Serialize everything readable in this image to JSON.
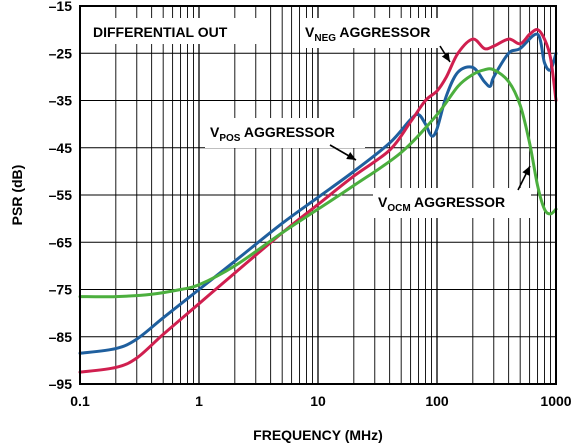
{
  "chart_data": {
    "type": "line",
    "xlabel": "FREQUENCY (MHz)",
    "ylabel": "PSR (dB)",
    "x_scale": "log",
    "xlim": [
      0.1,
      1000
    ],
    "ylim": [
      -95,
      -15
    ],
    "grid": true,
    "x_ticks": [
      {
        "value": 0.1,
        "label": "0.1"
      },
      {
        "value": 1,
        "label": "1"
      },
      {
        "value": 10,
        "label": "10"
      },
      {
        "value": 100,
        "label": "100"
      },
      {
        "value": 1000,
        "label": "1000"
      }
    ],
    "y_ticks": [
      {
        "value": -15,
        "label": "–15"
      },
      {
        "value": -25,
        "label": "–25"
      },
      {
        "value": -35,
        "label": "–35"
      },
      {
        "value": -45,
        "label": "–45"
      },
      {
        "value": -55,
        "label": "–55"
      },
      {
        "value": -65,
        "label": "–65"
      },
      {
        "value": -75,
        "label": "–75"
      },
      {
        "value": -85,
        "label": "–85"
      },
      {
        "value": -95,
        "label": "–95"
      }
    ],
    "annotations": {
      "differential_out": "DIFFERENTIAL OUT",
      "vneg": {
        "main": "V",
        "sub": "NEG",
        "rest": " AGGRESSOR"
      },
      "vpos": {
        "main": "V",
        "sub": "POS",
        "rest": " AGGRESSOR"
      },
      "vocm": {
        "main": "V",
        "sub": "OCM",
        "rest": " AGGRESSOR"
      }
    },
    "series": [
      {
        "color": "#1f5f9e",
        "points": [
          [
            0.1,
            -88.5
          ],
          [
            0.2,
            -87.5
          ],
          [
            0.3,
            -85.5
          ],
          [
            0.5,
            -81
          ],
          [
            1,
            -75
          ],
          [
            2,
            -69
          ],
          [
            5,
            -61
          ],
          [
            10,
            -55.5
          ],
          [
            20,
            -50
          ],
          [
            40,
            -44
          ],
          [
            60,
            -39
          ],
          [
            70,
            -38
          ],
          [
            80,
            -40
          ],
          [
            90,
            -42.5
          ],
          [
            100,
            -41
          ],
          [
            120,
            -34
          ],
          [
            150,
            -29
          ],
          [
            200,
            -28
          ],
          [
            250,
            -31
          ],
          [
            280,
            -32
          ],
          [
            300,
            -30
          ],
          [
            400,
            -25
          ],
          [
            500,
            -24
          ],
          [
            700,
            -21
          ],
          [
            800,
            -27
          ],
          [
            900,
            -28.5
          ],
          [
            1000,
            -25
          ]
        ]
      },
      {
        "color": "#d01f4f",
        "points": [
          [
            0.1,
            -92.5
          ],
          [
            0.2,
            -91.5
          ],
          [
            0.3,
            -89.5
          ],
          [
            0.5,
            -84.5
          ],
          [
            1,
            -78
          ],
          [
            2,
            -71.5
          ],
          [
            5,
            -63
          ],
          [
            10,
            -57
          ],
          [
            20,
            -51
          ],
          [
            40,
            -45.5
          ],
          [
            60,
            -39.5
          ],
          [
            80,
            -35
          ],
          [
            100,
            -33
          ],
          [
            120,
            -30
          ],
          [
            150,
            -25
          ],
          [
            200,
            -22
          ],
          [
            250,
            -24
          ],
          [
            300,
            -23.5
          ],
          [
            400,
            -22
          ],
          [
            500,
            -23
          ],
          [
            600,
            -21
          ],
          [
            700,
            -20
          ],
          [
            800,
            -22
          ],
          [
            900,
            -26
          ],
          [
            1000,
            -35
          ]
        ]
      },
      {
        "color": "#4caf3e",
        "points": [
          [
            0.1,
            -76.5
          ],
          [
            0.2,
            -76.5
          ],
          [
            0.4,
            -76
          ],
          [
            0.7,
            -75
          ],
          [
            1,
            -74
          ],
          [
            2,
            -70
          ],
          [
            5,
            -63
          ],
          [
            10,
            -58
          ],
          [
            20,
            -53
          ],
          [
            50,
            -46
          ],
          [
            100,
            -38
          ],
          [
            150,
            -32
          ],
          [
            200,
            -29.5
          ],
          [
            250,
            -28.5
          ],
          [
            300,
            -28.5
          ],
          [
            400,
            -31
          ],
          [
            500,
            -36
          ],
          [
            600,
            -44
          ],
          [
            700,
            -53
          ],
          [
            800,
            -58
          ],
          [
            900,
            -59
          ],
          [
            1000,
            -58
          ]
        ]
      }
    ]
  }
}
